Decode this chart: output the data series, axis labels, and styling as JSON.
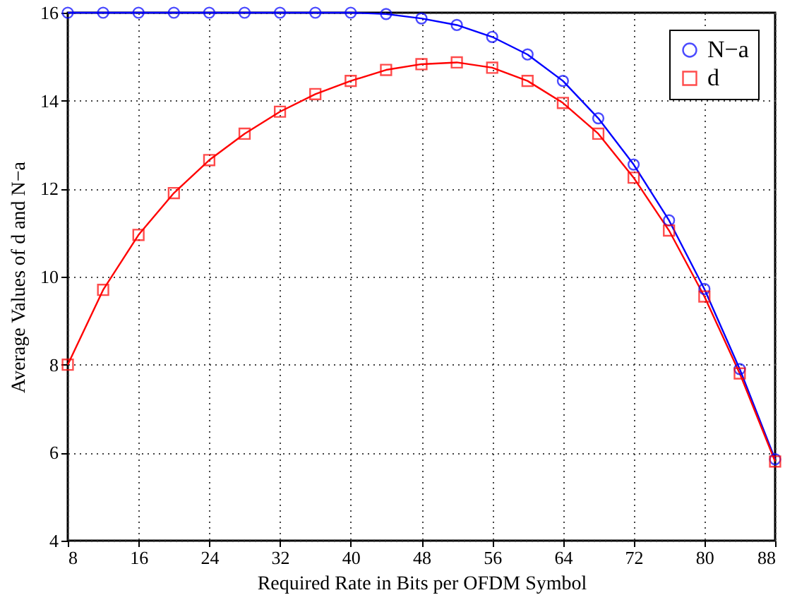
{
  "chart_data": {
    "type": "line",
    "xlabel": "Required Rate in Bits per OFDM Symbol",
    "ylabel": "Average Values of d and N−a",
    "x": [
      8,
      12,
      16,
      20,
      24,
      28,
      32,
      36,
      40,
      44,
      48,
      52,
      56,
      60,
      64,
      68,
      72,
      76,
      80,
      84,
      88
    ],
    "series": [
      {
        "name": "N−a",
        "color": "#0000ff",
        "marker": "circle",
        "values": [
          16,
          16,
          16,
          16,
          16,
          16,
          16,
          16,
          16,
          15.97,
          15.87,
          15.72,
          15.45,
          15.05,
          14.45,
          13.6,
          12.55,
          11.28,
          9.72,
          7.9,
          5.85
        ]
      },
      {
        "name": "d",
        "color": "#ff0000",
        "marker": "square",
        "values": [
          8.0,
          9.7,
          10.95,
          11.9,
          12.65,
          13.25,
          13.75,
          14.15,
          14.45,
          14.7,
          14.83,
          14.87,
          14.75,
          14.45,
          13.95,
          13.25,
          12.25,
          11.05,
          9.55,
          7.8,
          5.8
        ]
      }
    ],
    "xlim": [
      8,
      88
    ],
    "xticks": [
      8,
      16,
      24,
      32,
      40,
      48,
      56,
      64,
      72,
      80,
      88
    ],
    "ylim": [
      4,
      16
    ],
    "yticks": [
      4,
      6,
      8,
      10,
      12,
      14,
      16
    ],
    "grid": true,
    "legend": "top right",
    "line_style": "solid"
  }
}
